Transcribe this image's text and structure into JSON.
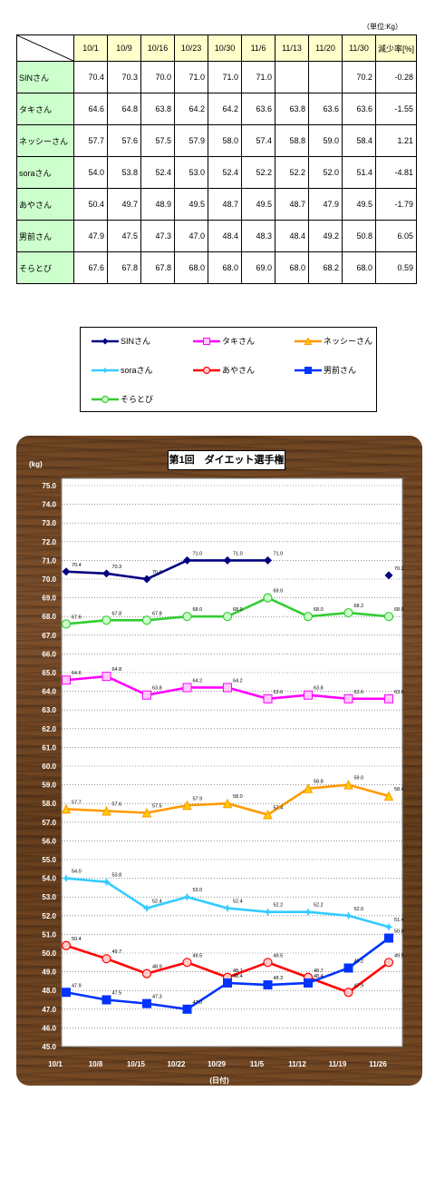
{
  "table": {
    "unit_label": "（単位:Kg）",
    "headers": [
      "10/1",
      "10/9",
      "10/16",
      "10/23",
      "10/30",
      "11/6",
      "11/13",
      "11/20",
      "11/30"
    ],
    "rate_header": "減少率[%]",
    "rows": [
      {
        "name": "SINさん",
        "values": [
          "70.4",
          "70.3",
          "70.0",
          "71.0",
          "71.0",
          "71.0",
          "",
          "",
          "70.2"
        ],
        "rate": "-0.28"
      },
      {
        "name": "タキさん",
        "values": [
          "64.6",
          "64.8",
          "63.8",
          "64.2",
          "64.2",
          "63.6",
          "63.8",
          "63.6",
          "63.6"
        ],
        "rate": "-1.55"
      },
      {
        "name": "ネッシーさん",
        "values": [
          "57.7",
          "57.6",
          "57.5",
          "57.9",
          "58.0",
          "57.4",
          "58.8",
          "59.0",
          "58.4"
        ],
        "rate": "1.21"
      },
      {
        "name": "soraさん",
        "values": [
          "54.0",
          "53.8",
          "52.4",
          "53.0",
          "52.4",
          "52.2",
          "52.2",
          "52.0",
          "51.4"
        ],
        "rate": "-4.81"
      },
      {
        "name": "あやさん",
        "values": [
          "50.4",
          "49.7",
          "48.9",
          "49.5",
          "48.7",
          "49.5",
          "48.7",
          "47.9",
          "49.5"
        ],
        "rate": "-1.79"
      },
      {
        "name": "男前さん",
        "values": [
          "47.9",
          "47.5",
          "47.3",
          "47.0",
          "48.4",
          "48.3",
          "48.4",
          "49.2",
          "50.8"
        ],
        "rate": "6.05"
      },
      {
        "name": "そらとび",
        "values": [
          "67.6",
          "67.8",
          "67.8",
          "68.0",
          "68.0",
          "69.0",
          "68.0",
          "68.2",
          "68.0"
        ],
        "rate": "0.59"
      }
    ]
  },
  "chart_data": {
    "type": "line",
    "title": "第1回　ダイエット選手権",
    "ylabel": "(kg)",
    "xlabel": "(日付)",
    "ylim": [
      45.0,
      75.0
    ],
    "ystep": 1.0,
    "x_ticks": [
      "10/1",
      "10/8",
      "10/15",
      "10/22",
      "10/29",
      "11/5",
      "11/12",
      "11/19",
      "11/26"
    ],
    "legend": "box-above",
    "grid": true,
    "series": [
      {
        "name": "SINさん",
        "color": "#000080",
        "marker": "diamond",
        "values": [
          70.4,
          70.3,
          70.0,
          71.0,
          71.0,
          71.0,
          null,
          null,
          70.2
        ]
      },
      {
        "name": "タキさん",
        "color": "#ff00ff",
        "marker": "square",
        "values": [
          64.6,
          64.8,
          63.8,
          64.2,
          64.2,
          63.6,
          63.8,
          63.6,
          63.6
        ]
      },
      {
        "name": "ネッシーさん",
        "color": "#ff9900",
        "marker": "triangle",
        "values": [
          57.7,
          57.6,
          57.5,
          57.9,
          58.0,
          57.4,
          58.8,
          59.0,
          58.4
        ]
      },
      {
        "name": "soraさん",
        "color": "#33ccff",
        "marker": "star",
        "values": [
          54.0,
          53.8,
          52.4,
          53.0,
          52.4,
          52.2,
          52.2,
          52.0,
          51.4
        ]
      },
      {
        "name": "あやさん",
        "color": "#ff0000",
        "marker": "circle",
        "values": [
          50.4,
          49.7,
          48.9,
          49.5,
          48.7,
          49.5,
          48.7,
          47.9,
          49.5
        ]
      },
      {
        "name": "男前さん",
        "color": "#0033ff",
        "marker": "square",
        "values": [
          47.9,
          47.5,
          47.3,
          47.0,
          48.4,
          48.3,
          48.4,
          49.2,
          50.8
        ]
      },
      {
        "name": "そらとび",
        "color": "#33cc33",
        "marker": "circle",
        "values": [
          67.6,
          67.8,
          67.8,
          68.0,
          68.0,
          69.0,
          68.0,
          68.2,
          68.0
        ]
      }
    ]
  }
}
